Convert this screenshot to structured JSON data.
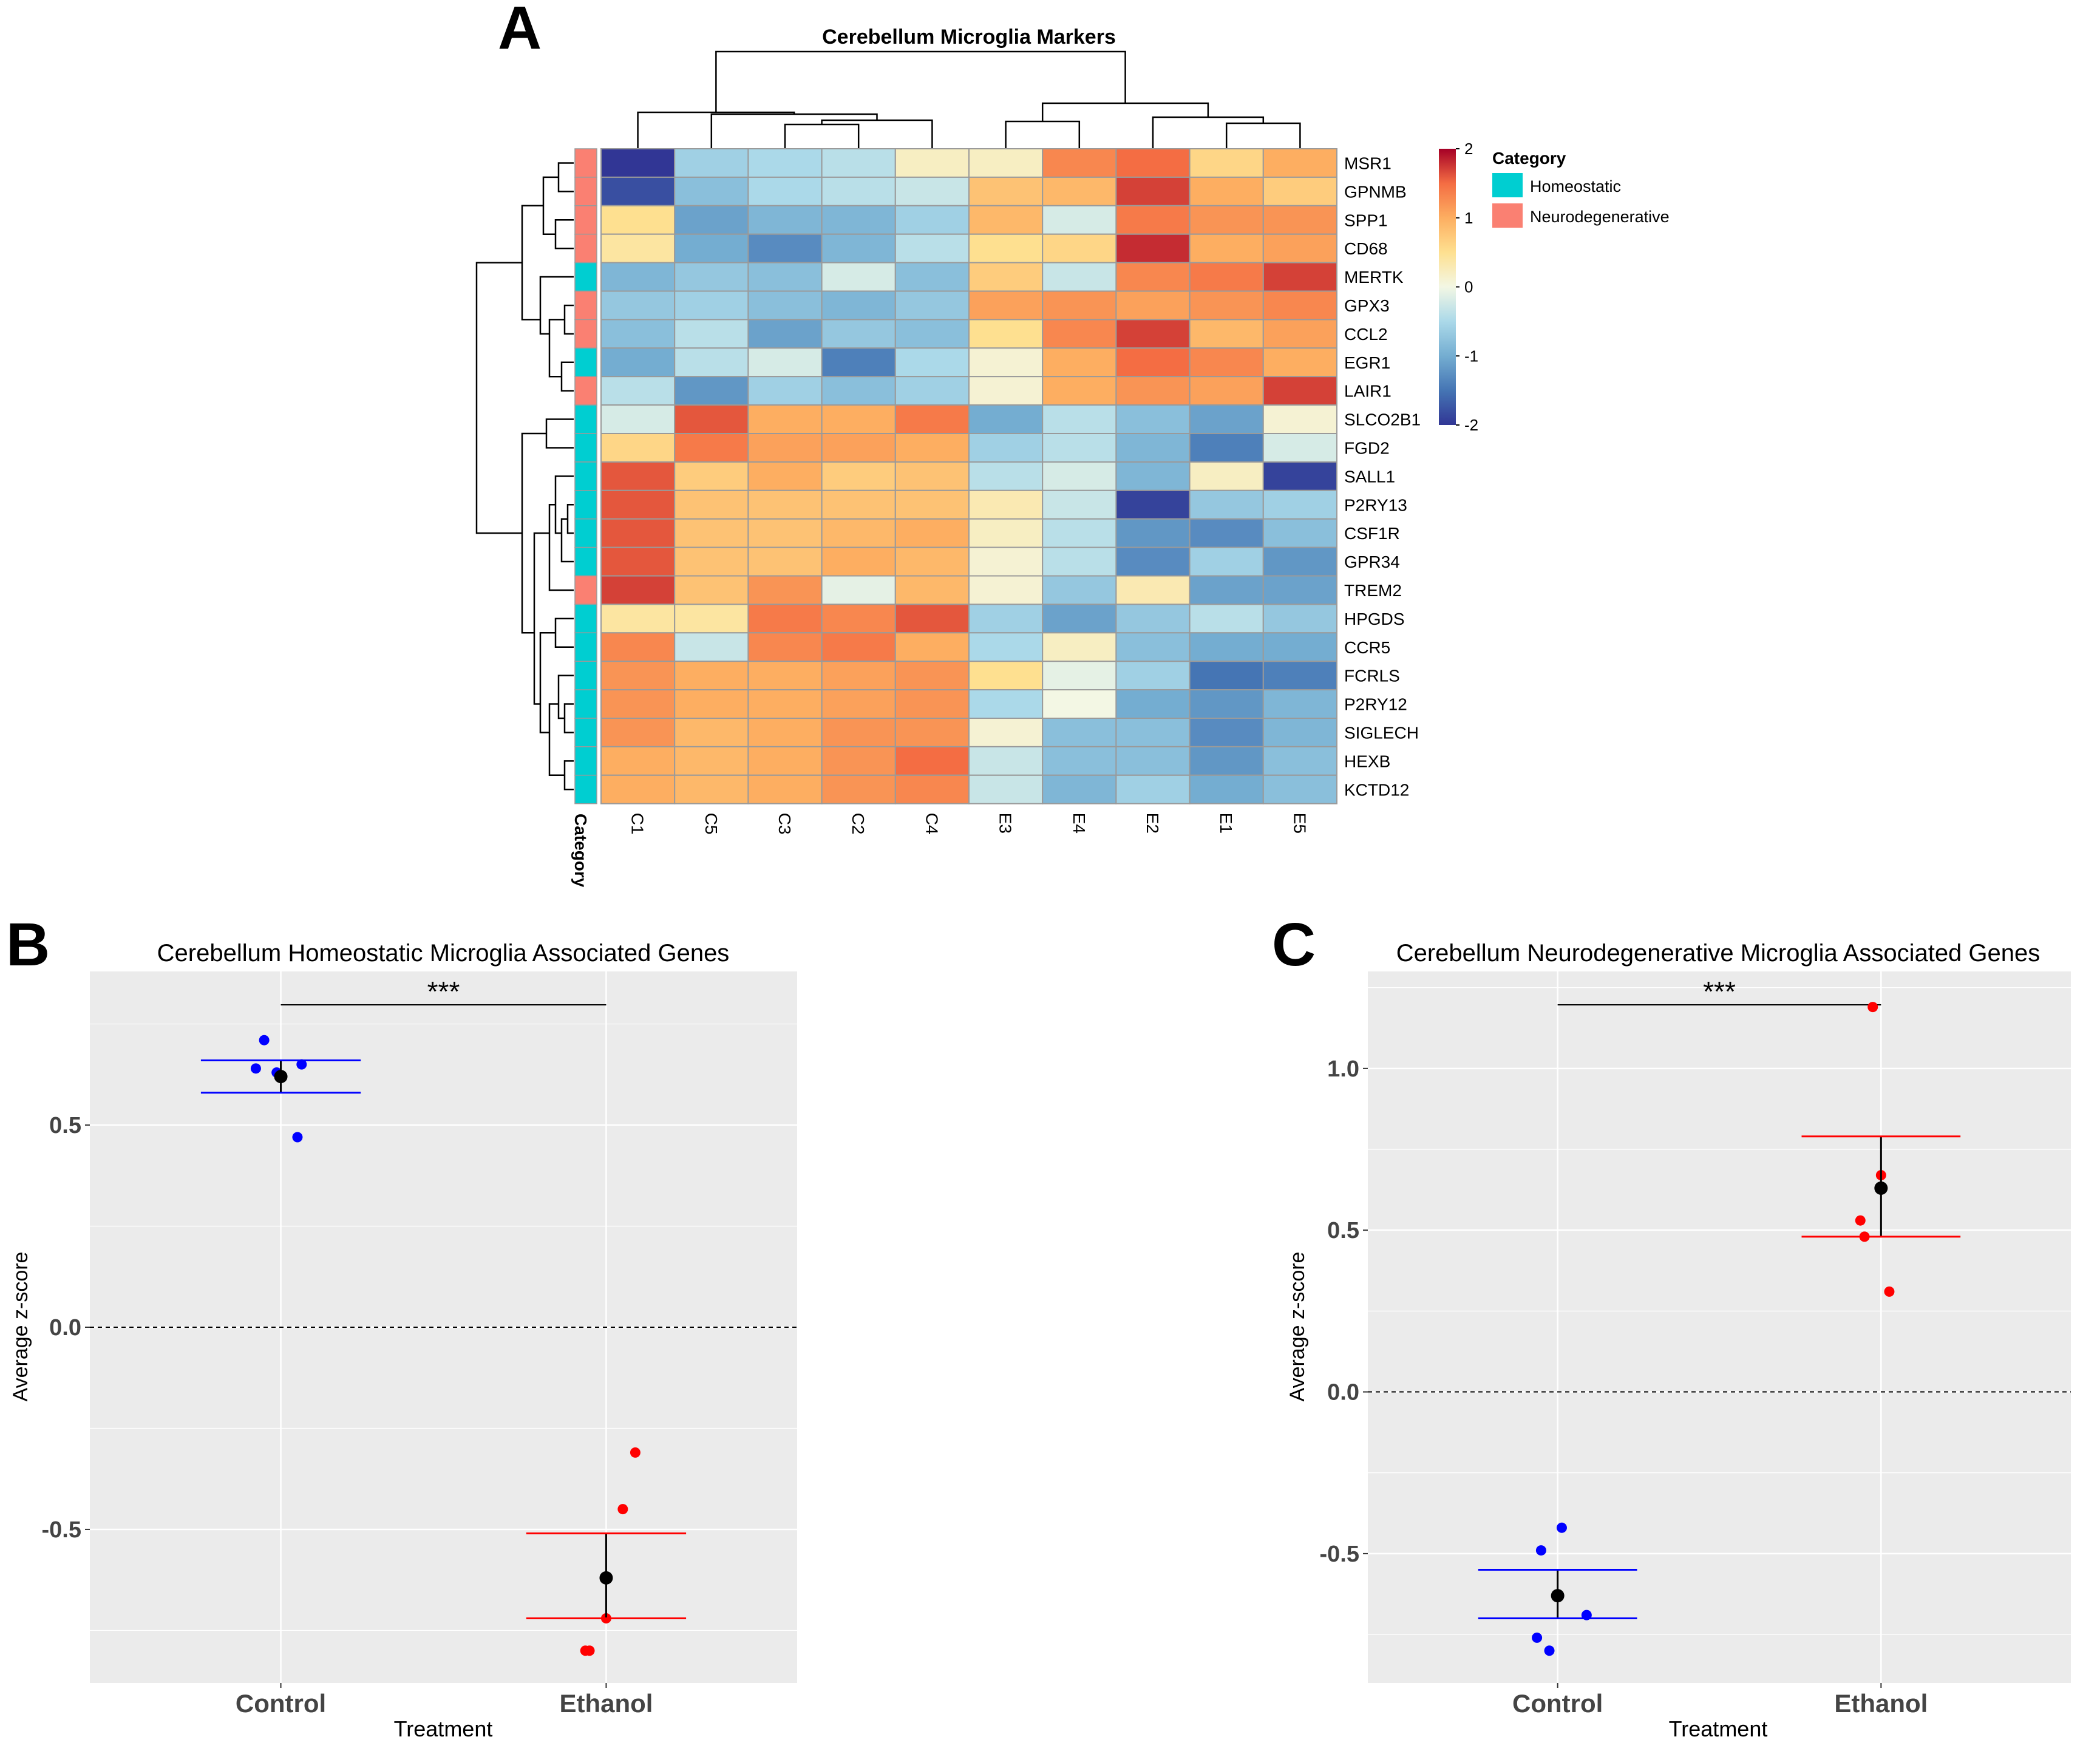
{
  "figure": {
    "panel_labels": [
      "A",
      "B",
      "C"
    ]
  },
  "colors": {
    "homeostatic": "#00CED1",
    "neurodegenerative": "#FA8072",
    "control_points": "#0000FF",
    "ethanol_points": "#FF0000",
    "mean_point": "#000000",
    "plot_bg": "#EBEBEB",
    "grid": "#FFFFFF",
    "heatmap_low": "#313695",
    "heatmap_mid": "#FFFFBF",
    "heatmap_high": "#A50026",
    "cell_border": "#999999"
  },
  "chart_data": [
    {
      "type": "heatmap",
      "panel": "A",
      "title": "Cerebellum Microglia Markers",
      "columns": [
        "C1",
        "C5",
        "C3",
        "C2",
        "C4",
        "E3",
        "E4",
        "E2",
        "E1",
        "E5"
      ],
      "rows": [
        "MSR1",
        "GPNMB",
        "SPP1",
        "CD68",
        "MERTK",
        "GPX3",
        "CCL2",
        "EGR1",
        "LAIR1",
        "SLCO2B1",
        "FGD2",
        "SALL1",
        "P2RY13",
        "CSF1R",
        "GPR34",
        "TREM2",
        "HPGDS",
        "CCR5",
        "FCRLS",
        "P2RY12",
        "SIGLECH",
        "HEXB",
        "KCTD12"
      ],
      "row_category": [
        "Neurodegenerative",
        "Neurodegenerative",
        "Neurodegenerative",
        "Neurodegenerative",
        "Homeostatic",
        "Neurodegenerative",
        "Neurodegenerative",
        "Homeostatic",
        "Neurodegenerative",
        "Homeostatic",
        "Homeostatic",
        "Homeostatic",
        "Homeostatic",
        "Homeostatic",
        "Homeostatic",
        "Neurodegenerative",
        "Homeostatic",
        "Homeostatic",
        "Homeostatic",
        "Homeostatic",
        "Homeostatic",
        "Homeostatic",
        "Homeostatic"
      ],
      "category_axis_label": "Category",
      "values": [
        [
          -2.0,
          -0.6,
          -0.5,
          -0.4,
          0.2,
          0.2,
          1.3,
          1.5,
          0.6,
          1.0
        ],
        [
          -1.8,
          -0.8,
          -0.5,
          -0.4,
          -0.3,
          0.8,
          0.9,
          1.7,
          1.0,
          0.7
        ],
        [
          0.5,
          -1.1,
          -0.9,
          -0.9,
          -0.6,
          0.9,
          -0.2,
          1.4,
          1.2,
          1.2
        ],
        [
          0.4,
          -1.0,
          -1.3,
          -0.9,
          -0.4,
          0.5,
          0.6,
          1.8,
          1.0,
          1.1
        ],
        [
          -0.9,
          -0.7,
          -0.8,
          -0.2,
          -0.8,
          0.7,
          -0.3,
          1.3,
          1.4,
          1.7
        ],
        [
          -0.7,
          -0.6,
          -0.8,
          -0.9,
          -0.7,
          1.1,
          1.2,
          1.1,
          1.2,
          1.3
        ],
        [
          -0.8,
          -0.4,
          -1.1,
          -0.7,
          -0.8,
          0.5,
          1.3,
          1.7,
          0.9,
          1.1
        ],
        [
          -1.0,
          -0.4,
          -0.2,
          -1.4,
          -0.5,
          0.1,
          1.0,
          1.5,
          1.3,
          1.0
        ],
        [
          -0.4,
          -1.2,
          -0.6,
          -0.8,
          -0.6,
          0.1,
          1.0,
          1.2,
          1.1,
          1.7
        ],
        [
          -0.2,
          1.6,
          1.0,
          1.0,
          1.4,
          -1.0,
          -0.4,
          -0.8,
          -1.1,
          0.1
        ],
        [
          0.6,
          1.4,
          1.1,
          1.1,
          1.0,
          -0.6,
          -0.4,
          -0.9,
          -1.4,
          -0.2
        ],
        [
          1.6,
          0.7,
          1.0,
          0.7,
          0.8,
          -0.4,
          -0.2,
          -0.9,
          0.2,
          -1.9
        ],
        [
          1.6,
          0.8,
          0.8,
          0.8,
          0.8,
          0.3,
          -0.3,
          -1.9,
          -0.7,
          -0.6
        ],
        [
          1.6,
          0.8,
          0.8,
          0.9,
          1.0,
          0.2,
          -0.4,
          -1.2,
          -1.3,
          -0.8
        ],
        [
          1.6,
          0.8,
          0.8,
          1.0,
          0.9,
          0.1,
          -0.4,
          -1.3,
          -0.6,
          -1.2
        ],
        [
          1.7,
          0.8,
          1.2,
          -0.1,
          0.9,
          0.1,
          -0.7,
          0.3,
          -1.1,
          -1.1
        ],
        [
          0.4,
          0.4,
          1.4,
          1.3,
          1.6,
          -0.6,
          -1.1,
          -0.7,
          -0.4,
          -0.7
        ],
        [
          1.3,
          -0.3,
          1.3,
          1.4,
          1.0,
          -0.5,
          0.2,
          -0.8,
          -1.0,
          -1.0
        ],
        [
          1.2,
          1.0,
          1.0,
          1.1,
          1.2,
          0.5,
          -0.1,
          -0.6,
          -1.5,
          -1.4
        ],
        [
          1.2,
          1.0,
          1.0,
          1.1,
          1.2,
          -0.5,
          0.0,
          -1.0,
          -1.2,
          -0.9
        ],
        [
          1.2,
          0.9,
          1.0,
          1.2,
          1.2,
          0.1,
          -0.8,
          -0.8,
          -1.3,
          -0.9
        ],
        [
          1.0,
          0.9,
          1.0,
          1.2,
          1.5,
          -0.3,
          -0.8,
          -0.8,
          -1.2,
          -0.8
        ],
        [
          1.0,
          0.9,
          1.0,
          1.2,
          1.3,
          -0.3,
          -0.9,
          -0.6,
          -1.0,
          -0.8
        ]
      ],
      "color_scale": {
        "min": -2,
        "max": 2,
        "ticks": [
          "2",
          "1",
          "0",
          "-1",
          "-2"
        ]
      },
      "legend": {
        "title": "Category",
        "entries": [
          "Homeostatic",
          "Neurodegenerative"
        ],
        "placement": "right"
      },
      "row_dendrogram": true,
      "column_dendrogram": true
    },
    {
      "type": "scatter",
      "panel": "B",
      "title": "Cerebellum Homeostatic Microglia Associated Genes",
      "xlabel": "Treatment",
      "ylabel": "Average z-score",
      "categories": [
        "Control",
        "Ethanol"
      ],
      "ylim": [
        -0.88,
        0.88
      ],
      "yticks": [
        -0.5,
        0.0,
        0.5
      ],
      "ytick_labels": [
        "-0.5",
        "0.0",
        "0.5"
      ],
      "significance": "***",
      "reference_line": 0.0,
      "series": [
        {
          "name": "Control",
          "category": "Control",
          "color": "#0000FF",
          "points": [
            0.71,
            0.64,
            0.63,
            0.65,
            0.47
          ],
          "jitter": [
            -0.04,
            -0.06,
            -0.01,
            0.05,
            0.04
          ],
          "mean": 0.62,
          "err_low": 0.58,
          "err_high": 0.66
        },
        {
          "name": "Ethanol",
          "category": "Ethanol",
          "color": "#FF0000",
          "points": [
            -0.31,
            -0.45,
            -0.72,
            -0.8,
            -0.8
          ],
          "jitter": [
            0.07,
            0.04,
            0.0,
            -0.04,
            -0.05
          ],
          "mean": -0.62,
          "err_low": -0.72,
          "err_high": -0.51
        }
      ]
    },
    {
      "type": "scatter",
      "panel": "C",
      "title": "Cerebellum Neurodegenerative Microglia Associated Genes",
      "xlabel": "Treatment",
      "ylabel": "Average z-score",
      "categories": [
        "Control",
        "Ethanol"
      ],
      "ylim": [
        -0.9,
        1.3
      ],
      "yticks": [
        -0.5,
        0.0,
        0.5,
        1.0
      ],
      "ytick_labels": [
        "-0.5",
        "0.0",
        "0.5",
        "1.0"
      ],
      "significance": "***",
      "reference_line": 0.0,
      "series": [
        {
          "name": "Control",
          "category": "Control",
          "color": "#0000FF",
          "points": [
            -0.42,
            -0.49,
            -0.69,
            -0.76,
            -0.8
          ],
          "jitter": [
            0.01,
            -0.04,
            0.07,
            -0.05,
            -0.02
          ],
          "mean": -0.63,
          "err_low": -0.7,
          "err_high": -0.55
        },
        {
          "name": "Ethanol",
          "category": "Ethanol",
          "color": "#FF0000",
          "points": [
            1.19,
            0.67,
            0.53,
            0.48,
            0.31
          ],
          "jitter": [
            -0.02,
            0.0,
            -0.05,
            -0.04,
            0.02
          ],
          "mean": 0.63,
          "err_low": 0.48,
          "err_high": 0.79
        }
      ]
    }
  ]
}
